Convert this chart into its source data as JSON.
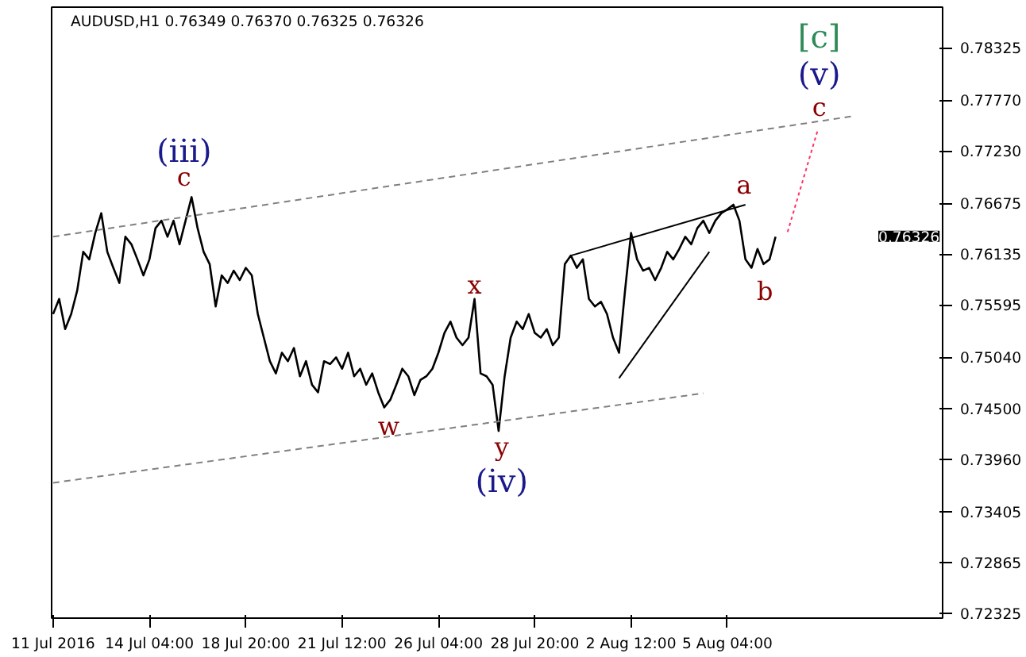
{
  "chart_data": {
    "type": "line",
    "title": "AUDUSD,H1  0.76349 0.76370 0.76325 0.76326",
    "categories": [
      "11 Jul 2016",
      null,
      null,
      null,
      null,
      null,
      null,
      null,
      null,
      null,
      null,
      null,
      null,
      null,
      null,
      null,
      "14 Jul 04:00",
      null,
      null,
      null,
      null,
      null,
      null,
      null,
      null,
      null,
      null,
      null,
      null,
      null,
      null,
      null,
      "18 Jul 20:00",
      null,
      null,
      null,
      null,
      null,
      null,
      null,
      null,
      null,
      null,
      null,
      null,
      null,
      null,
      null,
      "21 Jul 12:00",
      null,
      null,
      null,
      null,
      null,
      null,
      null,
      null,
      null,
      null,
      null,
      null,
      null,
      null,
      null,
      "26 Jul 04:00",
      null,
      null,
      null,
      null,
      null,
      null,
      null,
      null,
      null,
      null,
      null,
      null,
      null,
      null,
      null,
      "28 Jul 20:00",
      null,
      null,
      null,
      null,
      null,
      null,
      null,
      null,
      null,
      null,
      null,
      null,
      null,
      null,
      null,
      "2 Aug 12:00",
      null,
      null,
      null,
      null,
      null,
      null,
      null,
      null,
      null,
      null,
      null,
      null,
      null,
      null,
      null,
      "5 Aug 04:00",
      null,
      null,
      null,
      null,
      null,
      null,
      null,
      null,
      null,
      null,
      null,
      null,
      null,
      null,
      null,
      null,
      null,
      null,
      null,
      null,
      null,
      null,
      null,
      null,
      null,
      null,
      null,
      null,
      null,
      null,
      null,
      null,
      null,
      null,
      null
    ],
    "series": [
      {
        "color": "#000000",
        "values": [
          0.755,
          0.7566,
          0.7534,
          0.755,
          0.7575,
          0.7616,
          0.7608,
          0.7636,
          0.7657,
          0.7616,
          0.7599,
          0.7583,
          0.7632,
          0.7624,
          0.7608,
          0.7591,
          0.7608,
          0.7641,
          0.7649,
          0.7632,
          0.7649,
          0.7624,
          0.7649,
          0.7674,
          0.7641,
          0.7616,
          0.7603,
          0.7558,
          0.7591,
          0.7583,
          0.7596,
          0.7586,
          0.7599,
          0.7591,
          0.755,
          0.7525,
          0.75,
          0.7487,
          0.7509,
          0.75,
          0.7514,
          0.7484,
          0.75,
          0.7475,
          0.7467,
          0.75,
          0.7497,
          0.7504,
          0.7492,
          0.7509,
          0.7484,
          0.7492,
          0.7475,
          0.7487,
          0.7467,
          0.7451,
          0.7459,
          0.7475,
          0.7492,
          0.7484,
          0.7464,
          0.748,
          0.7484,
          0.7492,
          0.7509,
          0.753,
          0.7542,
          0.7525,
          0.7517,
          0.7525,
          0.7566,
          0.7487,
          0.7484,
          0.7475,
          0.7426,
          0.7484,
          0.7525,
          0.7542,
          0.7534,
          0.755,
          0.753,
          0.7525,
          0.7534,
          0.7517,
          0.7525,
          0.7603,
          0.7612,
          0.7599,
          0.7608,
          0.7566,
          0.7558,
          0.7563,
          0.755,
          0.7525,
          0.7509,
          0.7575,
          0.7636,
          0.7608,
          0.7596,
          0.7599,
          0.7586,
          0.7599,
          0.7616,
          0.7608,
          0.7619,
          0.7632,
          0.7624,
          0.7641,
          0.7649,
          0.7636,
          0.7649,
          0.7657,
          0.7661,
          0.7666,
          0.7649,
          0.7608,
          0.7599,
          0.7619,
          0.7603,
          0.7608,
          0.7632,
          null,
          null,
          null,
          null,
          null,
          null,
          null,
          null,
          null,
          null,
          null,
          null,
          null,
          null,
          null,
          null,
          null,
          null,
          null,
          null,
          null,
          null,
          null,
          null,
          null,
          null,
          null
        ]
      },
      {
        "color": "#808080",
        "line_style": "dashed",
        "values": [
          0.7632,
          null,
          null,
          null,
          null,
          null,
          null,
          null,
          null,
          null,
          null,
          null,
          null,
          null,
          null,
          null,
          null,
          null,
          null,
          null,
          null,
          null,
          null,
          null,
          null,
          null,
          null,
          null,
          null,
          null,
          null,
          null,
          null,
          null,
          null,
          null,
          null,
          null,
          null,
          null,
          null,
          null,
          null,
          null,
          null,
          null,
          null,
          null,
          null,
          null,
          null,
          null,
          null,
          null,
          null,
          null,
          null,
          null,
          null,
          null,
          null,
          null,
          null,
          null,
          null,
          null,
          null,
          null,
          null,
          null,
          null,
          null,
          null,
          null,
          null,
          null,
          null,
          null,
          null,
          null,
          null,
          null,
          null,
          null,
          null,
          null,
          null,
          null,
          null,
          null,
          null,
          null,
          null,
          null,
          null,
          null,
          null,
          null,
          null,
          null,
          null,
          null,
          null,
          null,
          null,
          null,
          null,
          null,
          null,
          null,
          null,
          null,
          null,
          null,
          null,
          null,
          null,
          null,
          null,
          null,
          null,
          null,
          null,
          null,
          null,
          null,
          null,
          null,
          null,
          null,
          null,
          null,
          null,
          0.776,
          null,
          null,
          null,
          null,
          null,
          null,
          null,
          null,
          null,
          null,
          null,
          null,
          null,
          null
        ]
      },
      {
        "color": "#808080",
        "line_style": "dashed",
        "values": [
          0.7371,
          null,
          null,
          null,
          null,
          null,
          null,
          null,
          null,
          null,
          null,
          null,
          null,
          null,
          null,
          null,
          null,
          null,
          null,
          null,
          null,
          null,
          null,
          null,
          null,
          null,
          null,
          null,
          null,
          null,
          null,
          null,
          null,
          null,
          null,
          null,
          null,
          null,
          null,
          null,
          null,
          null,
          null,
          null,
          null,
          null,
          null,
          null,
          null,
          null,
          null,
          null,
          null,
          null,
          null,
          null,
          null,
          null,
          null,
          null,
          null,
          null,
          null,
          null,
          null,
          null,
          null,
          null,
          null,
          null,
          null,
          null,
          null,
          null,
          null,
          null,
          null,
          null,
          null,
          null,
          null,
          null,
          null,
          null,
          null,
          null,
          null,
          null,
          null,
          null,
          null,
          null,
          null,
          null,
          null,
          null,
          null,
          null,
          null,
          null,
          null,
          null,
          null,
          null,
          null,
          null,
          null,
          null,
          0.7466,
          null,
          null,
          null,
          null,
          null,
          null,
          null,
          null,
          null,
          null,
          null,
          null,
          null,
          null,
          null,
          null,
          null,
          null,
          null,
          null,
          null,
          null,
          null,
          null,
          null,
          null,
          null,
          null,
          null,
          null,
          null,
          null,
          null,
          null,
          null,
          null,
          null,
          null,
          null
        ]
      },
      {
        "color": "#000000",
        "line_style": "solid",
        "values": [
          null,
          null,
          null,
          null,
          null,
          null,
          null,
          null,
          null,
          null,
          null,
          null,
          null,
          null,
          null,
          null,
          null,
          null,
          null,
          null,
          null,
          null,
          null,
          null,
          null,
          null,
          null,
          null,
          null,
          null,
          null,
          null,
          null,
          null,
          null,
          null,
          null,
          null,
          null,
          null,
          null,
          null,
          null,
          null,
          null,
          null,
          null,
          null,
          null,
          null,
          null,
          null,
          null,
          null,
          null,
          null,
          null,
          null,
          null,
          null,
          null,
          null,
          null,
          null,
          null,
          null,
          null,
          null,
          null,
          null,
          null,
          null,
          null,
          null,
          null,
          null,
          null,
          null,
          null,
          null,
          null,
          null,
          null,
          null,
          null,
          null,
          0.7612,
          null,
          null,
          null,
          null,
          null,
          null,
          null,
          null,
          null,
          null,
          null,
          null,
          null,
          null,
          null,
          null,
          null,
          null,
          null,
          null,
          null,
          null,
          null,
          null,
          null,
          null,
          null,
          null,
          0.7666,
          null,
          null,
          null,
          null,
          null,
          null,
          null,
          null,
          null,
          null,
          null,
          null,
          null,
          null,
          null,
          null,
          null,
          null,
          null,
          null,
          null,
          null,
          null,
          null,
          null,
          null,
          null,
          null,
          null,
          null,
          null,
          null
        ]
      },
      {
        "color": "#000000",
        "line_style": "solid",
        "values": [
          null,
          null,
          null,
          null,
          null,
          null,
          null,
          null,
          null,
          null,
          null,
          null,
          null,
          null,
          null,
          null,
          null,
          null,
          null,
          null,
          null,
          null,
          null,
          null,
          null,
          null,
          null,
          null,
          null,
          null,
          null,
          null,
          null,
          null,
          null,
          null,
          null,
          null,
          null,
          null,
          null,
          null,
          null,
          null,
          null,
          null,
          null,
          null,
          null,
          null,
          null,
          null,
          null,
          null,
          null,
          null,
          null,
          null,
          null,
          null,
          null,
          null,
          null,
          null,
          null,
          null,
          null,
          null,
          null,
          null,
          null,
          null,
          null,
          null,
          null,
          null,
          null,
          null,
          null,
          null,
          null,
          null,
          null,
          null,
          null,
          null,
          null,
          null,
          null,
          null,
          null,
          null,
          null,
          null,
          0.7482,
          null,
          null,
          null,
          null,
          null,
          null,
          null,
          null,
          null,
          null,
          null,
          null,
          null,
          null,
          0.7616,
          null,
          null,
          null,
          null,
          null,
          null,
          null,
          null,
          null,
          null,
          null,
          null,
          null,
          null,
          null,
          null,
          null,
          null,
          null,
          null,
          null,
          null,
          null,
          null,
          null,
          null,
          null,
          null,
          null,
          null,
          null,
          null,
          null,
          null,
          null,
          null,
          null,
          null
        ]
      },
      {
        "color": "#ff3366",
        "line_style": "dotted",
        "values": [
          null,
          null,
          null,
          null,
          null,
          null,
          null,
          null,
          null,
          null,
          null,
          null,
          null,
          null,
          null,
          null,
          null,
          null,
          null,
          null,
          null,
          null,
          null,
          null,
          null,
          null,
          null,
          null,
          null,
          null,
          null,
          null,
          null,
          null,
          null,
          null,
          null,
          null,
          null,
          null,
          null,
          null,
          null,
          null,
          null,
          null,
          null,
          null,
          null,
          null,
          null,
          null,
          null,
          null,
          null,
          null,
          null,
          null,
          null,
          null,
          null,
          null,
          null,
          null,
          null,
          null,
          null,
          null,
          null,
          null,
          null,
          null,
          null,
          null,
          null,
          null,
          null,
          null,
          null,
          null,
          null,
          null,
          null,
          null,
          null,
          null,
          null,
          null,
          null,
          null,
          null,
          null,
          null,
          null,
          null,
          null,
          null,
          null,
          null,
          null,
          null,
          null,
          null,
          null,
          null,
          null,
          null,
          null,
          null,
          null,
          null,
          null,
          null,
          null,
          null,
          null,
          null,
          null,
          null,
          null,
          null,
          null,
          0.7637,
          null,
          null,
          null,
          null,
          0.7745,
          null,
          null,
          null,
          null,
          null,
          null,
          null,
          null,
          null,
          null,
          null,
          null,
          null,
          null,
          null,
          null,
          null,
          null,
          null,
          null
        ]
      }
    ],
    "ylim": [
      0.72275,
      0.78755
    ],
    "yticks": [
      {
        "value": 0.78325,
        "label": "0.78325"
      },
      {
        "value": 0.7777,
        "label": "0.77770"
      },
      {
        "value": 0.7723,
        "label": "0.77230"
      },
      {
        "value": 0.76675,
        "label": "0.76675"
      },
      {
        "value": 0.76135,
        "label": "0.76135"
      },
      {
        "value": 0.75595,
        "label": "0.75595"
      },
      {
        "value": 0.7504,
        "label": "0.75040"
      },
      {
        "value": 0.745,
        "label": "0.74500"
      },
      {
        "value": 0.7396,
        "label": "0.73960"
      },
      {
        "value": 0.73405,
        "label": "0.73405"
      },
      {
        "value": 0.72865,
        "label": "0.72865"
      },
      {
        "value": 0.72325,
        "label": "0.72325"
      }
    ],
    "annotations": [
      "(iii)",
      "c",
      "x",
      "w",
      "y",
      "(iv)",
      "a",
      "b",
      "c",
      "(v)",
      "[c]",
      "0.76326"
    ],
    "grid": false
  }
}
